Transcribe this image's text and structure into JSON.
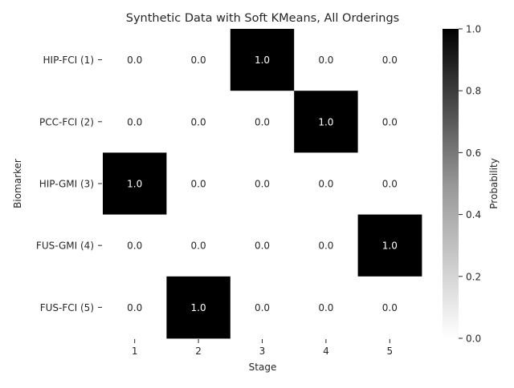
{
  "chart_data": {
    "type": "heatmap",
    "title": "Synthetic Data with Soft KMeans, All Orderings",
    "xlabel": "Stage",
    "ylabel": "Biomarker",
    "x_categories": [
      "1",
      "2",
      "3",
      "4",
      "5"
    ],
    "y_categories": [
      "HIP-FCI (1)",
      "PCC-FCI (2)",
      "HIP-GMI (3)",
      "FUS-GMI (4)",
      "FUS-FCI (5)"
    ],
    "values": [
      [
        0.0,
        0.0,
        1.0,
        0.0,
        0.0
      ],
      [
        0.0,
        0.0,
        0.0,
        1.0,
        0.0
      ],
      [
        1.0,
        0.0,
        0.0,
        0.0,
        0.0
      ],
      [
        0.0,
        0.0,
        0.0,
        0.0,
        1.0
      ],
      [
        0.0,
        1.0,
        0.0,
        0.0,
        0.0
      ]
    ],
    "cell_labels": [
      [
        "0.0",
        "0.0",
        "1.0",
        "0.0",
        "0.0"
      ],
      [
        "0.0",
        "0.0",
        "0.0",
        "1.0",
        "0.0"
      ],
      [
        "1.0",
        "0.0",
        "0.0",
        "0.0",
        "0.0"
      ],
      [
        "0.0",
        "0.0",
        "0.0",
        "0.0",
        "1.0"
      ],
      [
        "0.0",
        "1.0",
        "0.0",
        "0.0",
        "0.0"
      ]
    ],
    "colorbar": {
      "label": "Probability",
      "range": [
        0.0,
        1.0
      ],
      "ticks": [
        "0.0",
        "0.2",
        "0.4",
        "0.6",
        "0.8",
        "1.0"
      ],
      "colormap": "Greys"
    },
    "colors": {
      "low": "#ffffff",
      "high": "#000000",
      "text_on_dark": "#ffffff",
      "text_on_light": "#262626"
    }
  }
}
